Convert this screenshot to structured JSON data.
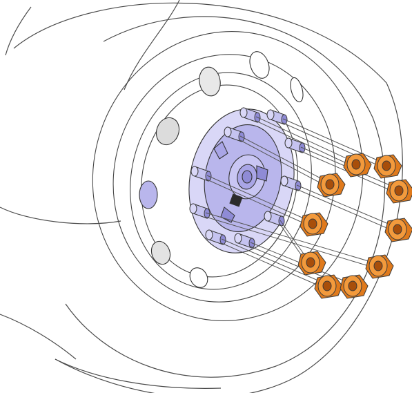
{
  "diagram": {
    "subject": "wheel-stud-and-nut-exploded-view",
    "stud_count": 10,
    "nut_count": 10,
    "colors": {
      "outline": "#3a3a3a",
      "tire_line": "#4a4a4a",
      "hub": "#b9b6ec",
      "hub_dark": "#8f8bd6",
      "stud": "#c5c3f0",
      "nut_face": "#f39a3c",
      "nut_side": "#e07a1c",
      "nut_hole": "#a84e0a",
      "background": "#ffffff"
    }
  }
}
